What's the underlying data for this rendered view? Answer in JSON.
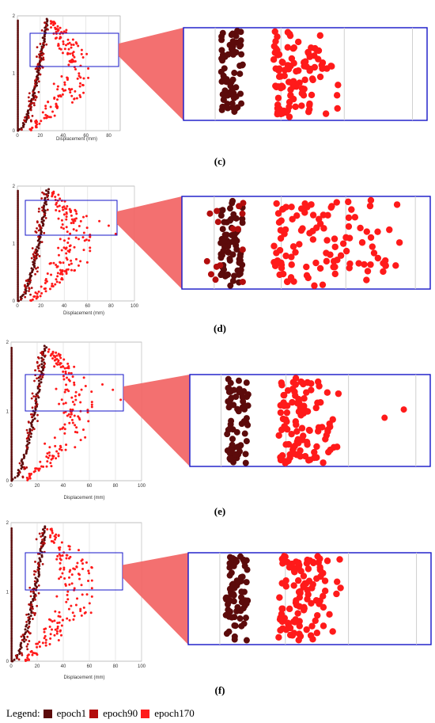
{
  "colors": {
    "epoch1": "#5c0b0b",
    "epoch90": "#b30d0d",
    "epoch170": "#ff1a1a",
    "box": "#1515c8",
    "trapezoid": "#f26060"
  },
  "legend": {
    "title": "Legend:",
    "items": [
      "epoch1",
      "epoch90",
      "epoch170"
    ]
  },
  "chart_data": [
    {
      "type": "scatter",
      "panel": "c",
      "caption": "(c)",
      "xlabel": "Displacement (mm)",
      "xticks": [
        "0",
        "20",
        "40",
        "60",
        "80"
      ],
      "yticks": [
        "2",
        "1",
        "0"
      ],
      "xlim": [
        0,
        90
      ],
      "ylim": [
        0,
        1.8
      ],
      "series": [
        {
          "name": "epoch1",
          "curve": "outer",
          "x_range": [
            0,
            28
          ],
          "y_range": [
            0,
            1.75
          ]
        },
        {
          "name": "epoch90",
          "curve": "inner",
          "x_range": [
            0,
            28
          ],
          "y_range": [
            0,
            1.75
          ]
        },
        {
          "name": "epoch170",
          "curve": "cloud",
          "x_range": [
            20,
            62
          ],
          "y_range": [
            0,
            1.75
          ]
        }
      ],
      "inset": {
        "x_range": [
          8,
          80
        ],
        "y_range": [
          1.05,
          1.55
        ]
      }
    },
    {
      "type": "scatter",
      "panel": "d",
      "caption": "(d)",
      "xlabel": "Displacement (mm)",
      "xticks": [
        "0",
        "20",
        "40",
        "60",
        "80",
        "100"
      ],
      "yticks": [
        "2",
        "1",
        "0"
      ],
      "xlim": [
        0,
        100
      ],
      "ylim": [
        0,
        1.8
      ],
      "series": [
        {
          "name": "epoch1",
          "curve": "outer",
          "x_range": [
            0,
            28
          ],
          "y_range": [
            0,
            1.75
          ]
        },
        {
          "name": "epoch90",
          "curve": "inner",
          "x_range": [
            0,
            28
          ],
          "y_range": [
            0,
            1.75
          ]
        },
        {
          "name": "epoch170",
          "curve": "cloud",
          "x_range": [
            20,
            85
          ],
          "y_range": [
            0,
            1.75
          ]
        }
      ],
      "inset": {
        "x_range": [
          8,
          85
        ],
        "y_range": [
          1.0,
          1.5
        ]
      }
    },
    {
      "type": "scatter",
      "panel": "e",
      "caption": "(e)",
      "xlabel": "Displacement (mm)",
      "xticks": [
        "0",
        "20",
        "40",
        "60",
        "80",
        "100"
      ],
      "yticks": [
        "2",
        "1",
        "0"
      ],
      "xlim": [
        0,
        100
      ],
      "ylim": [
        0,
        1.8
      ],
      "series": [
        {
          "name": "epoch1",
          "curve": "outer",
          "x_range": [
            0,
            28
          ],
          "y_range": [
            0,
            1.75
          ]
        },
        {
          "name": "epoch90",
          "curve": "inner",
          "x_range": [
            0,
            28
          ],
          "y_range": [
            0,
            1.75
          ]
        },
        {
          "name": "epoch170",
          "curve": "cloud",
          "x_range": [
            20,
            80
          ],
          "y_range": [
            0,
            1.75
          ]
        }
      ],
      "inset": {
        "x_range": [
          8,
          85
        ],
        "y_range": [
          1.0,
          1.5
        ]
      }
    },
    {
      "type": "scatter",
      "panel": "f",
      "caption": "(f)",
      "xlabel": "Displacement (mm)",
      "xticks": [
        "0",
        "20",
        "40",
        "60",
        "80",
        "100"
      ],
      "yticks": [
        "2",
        "1",
        "0"
      ],
      "xlim": [
        0,
        100
      ],
      "ylim": [
        0,
        1.8
      ],
      "series": [
        {
          "name": "epoch1",
          "curve": "outer",
          "x_range": [
            0,
            28
          ],
          "y_range": [
            0,
            1.75
          ]
        },
        {
          "name": "epoch90",
          "curve": "inner",
          "x_range": [
            0,
            28
          ],
          "y_range": [
            0,
            1.75
          ]
        },
        {
          "name": "epoch170",
          "curve": "cloud",
          "x_range": [
            20,
            62
          ],
          "y_range": [
            0,
            1.75
          ]
        }
      ],
      "inset": {
        "x_range": [
          8,
          85
        ],
        "y_range": [
          1.0,
          1.5
        ]
      }
    }
  ]
}
